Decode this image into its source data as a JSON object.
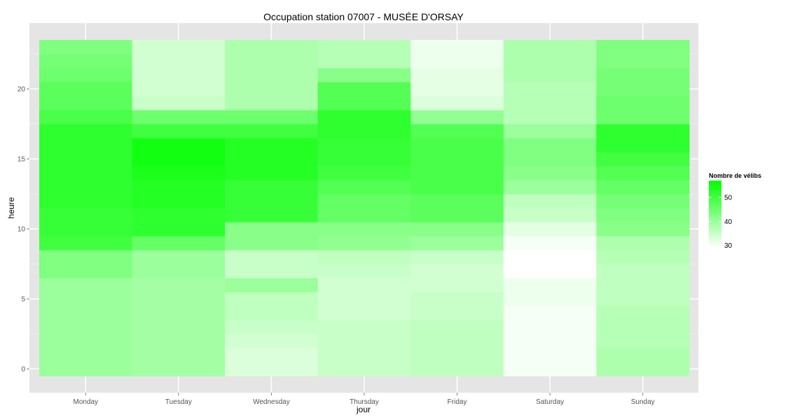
{
  "chart_data": {
    "type": "heatmap",
    "title": "Occupation station 07007 - MUSÉE D'ORSAY",
    "xlabel": "jour",
    "ylabel": "heure",
    "x_categories": [
      "Monday",
      "Tuesday",
      "Wednesday",
      "Thursday",
      "Friday",
      "Saturday",
      "Sunday"
    ],
    "y_range": [
      -0.5,
      23.5
    ],
    "y_ticks": [
      0,
      5,
      10,
      15,
      20
    ],
    "grid": true,
    "legend": {
      "title": "Nombre de vélibs",
      "position": "right",
      "ticks": [
        30,
        40,
        50
      ],
      "range": [
        29,
        57
      ],
      "color_low": "#ffffff",
      "color_high": "#00ff00"
    },
    "hours": [
      0,
      1,
      2,
      3,
      4,
      5,
      6,
      7,
      8,
      9,
      10,
      11,
      12,
      13,
      14,
      15,
      16,
      17,
      18,
      19,
      20,
      21,
      22,
      23
    ],
    "values": {
      "Monday": [
        40,
        40,
        40,
        40,
        40,
        40,
        40,
        43,
        43,
        50,
        51,
        51,
        52,
        52,
        52,
        52,
        52,
        52,
        49,
        47,
        47,
        45,
        44,
        43
      ],
      "Tuesday": [
        39,
        39,
        39,
        39,
        39,
        39,
        39,
        40,
        40,
        46,
        52,
        52,
        53,
        53,
        54,
        55,
        55,
        50,
        45,
        35,
        34,
        34,
        34,
        34
      ],
      "Wednesday": [
        33,
        33,
        34,
        35,
        36,
        36,
        40,
        35,
        35,
        42,
        42,
        51,
        51,
        51,
        53,
        53,
        53,
        50,
        45,
        38,
        38,
        38,
        38,
        38
      ],
      "Thursday": [
        35,
        35,
        35,
        35,
        34,
        34,
        34,
        35,
        36,
        41,
        42,
        46,
        46,
        48,
        50,
        51,
        51,
        52,
        52,
        48,
        48,
        42,
        37,
        37
      ],
      "Friday": [
        36,
        36,
        36,
        36,
        35,
        35,
        34,
        34,
        35,
        40,
        42,
        47,
        47,
        49,
        49,
        49,
        49,
        48,
        41,
        33,
        32,
        32,
        31,
        31
      ],
      "Saturday": [
        30,
        30,
        30,
        30,
        30,
        31,
        31,
        29,
        29,
        30,
        32,
        35,
        36,
        40,
        42,
        43,
        43,
        40,
        37,
        37,
        37,
        38,
        38,
        38
      ],
      "Sunday": [
        38,
        38,
        37,
        37,
        37,
        36,
        36,
        36,
        37,
        38,
        42,
        43,
        44,
        46,
        48,
        50,
        52,
        52,
        45,
        45,
        44,
        44,
        43,
        43
      ]
    }
  }
}
